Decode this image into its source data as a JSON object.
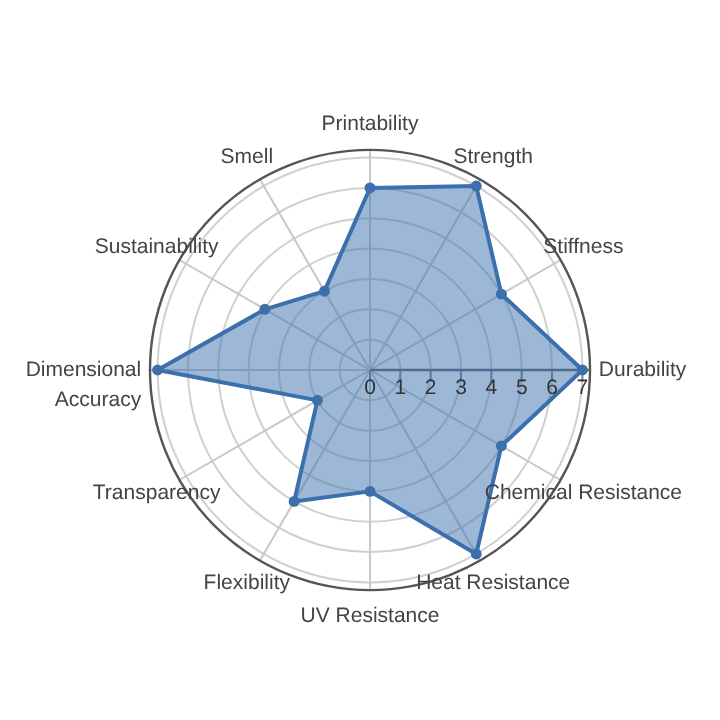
{
  "chart_data": {
    "type": "radar",
    "categories": [
      "Printability",
      "Strength",
      "Stiffness",
      "Durability",
      "Chemical Resistance",
      "Heat Resistance",
      "UV Resistance",
      "Flexibility",
      "Transparency",
      "Dimensional Accuracy",
      "Sustainability",
      "Smell"
    ],
    "series": [
      {
        "color": "#3b70ad",
        "values": [
          6,
          7,
          5,
          7,
          5,
          7,
          4,
          5,
          2,
          7,
          4,
          3
        ]
      }
    ],
    "ylim": [
      0,
      7.25
    ],
    "yticks": [
      0,
      1,
      2,
      3,
      4,
      5,
      6,
      7
    ],
    "grid": true,
    "marker": "circle"
  }
}
